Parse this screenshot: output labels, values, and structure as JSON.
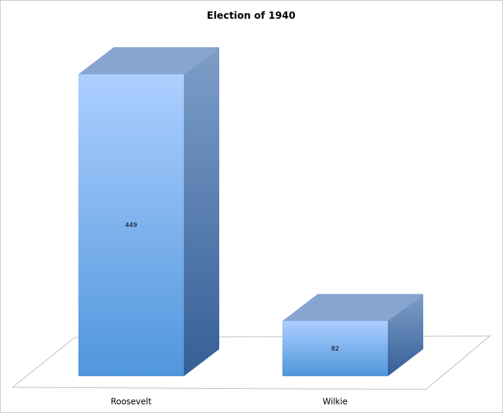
{
  "chart_data": {
    "type": "bar3d",
    "title": "Election of 1940",
    "categories": [
      "Roosevelt",
      "Wilkie"
    ],
    "values": [
      449,
      82
    ]
  }
}
